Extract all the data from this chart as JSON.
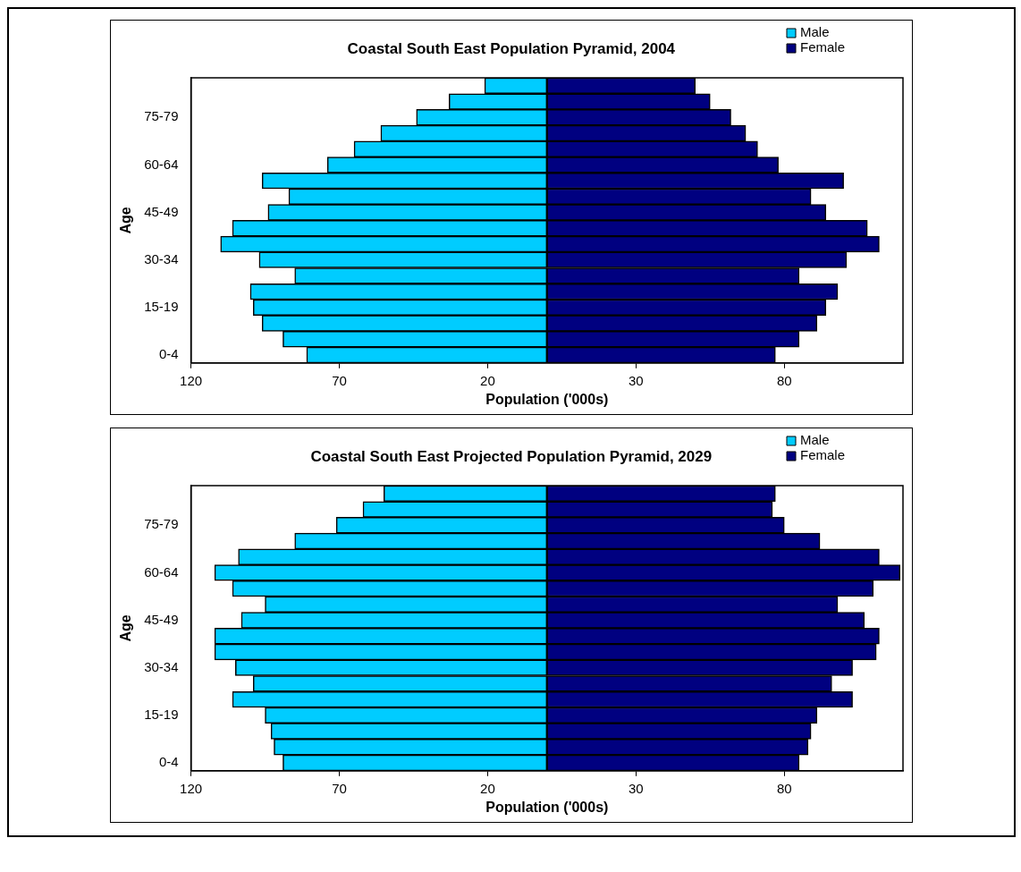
{
  "chart_data": [
    {
      "type": "bar",
      "orientation": "horizontal",
      "stacked": true,
      "title": "Coastal South East Population Pyramid, 2004",
      "xlabel": "Population ('000s)",
      "ylabel": "Age",
      "legend": "top right",
      "grid": false,
      "categories": [
        null,
        null,
        "75-79",
        null,
        null,
        "60-64",
        null,
        null,
        "45-49",
        null,
        null,
        "30-34",
        null,
        null,
        "15-19",
        null,
        null,
        "0-4"
      ],
      "xlim": [
        -120,
        120
      ],
      "xticks": [
        {
          "value": -120,
          "label": "120"
        },
        {
          "value": -70,
          "label": "70"
        },
        {
          "value": -20,
          "label": "20"
        },
        {
          "value": 30,
          "label": "30"
        },
        {
          "value": 80,
          "label": "80"
        }
      ],
      "series": [
        {
          "name": "Male",
          "color": "#00ccff",
          "values": [
            -21,
            -33,
            -44,
            -56,
            -65,
            -74,
            -96,
            -87,
            -94,
            -106,
            -110,
            -97,
            -85,
            -100,
            -99,
            -96,
            -89,
            -81
          ]
        },
        {
          "name": "Female",
          "color": "#000080",
          "values": [
            50,
            55,
            62,
            67,
            71,
            78,
            100,
            89,
            94,
            108,
            112,
            101,
            85,
            98,
            94,
            91,
            85,
            77
          ]
        }
      ]
    },
    {
      "type": "bar",
      "orientation": "horizontal",
      "stacked": true,
      "title": "Coastal South East Projected Population Pyramid, 2029",
      "xlabel": "Population ('000s)",
      "ylabel": "Age",
      "legend": "top right",
      "grid": false,
      "categories": [
        null,
        null,
        "75-79",
        null,
        null,
        "60-64",
        null,
        null,
        "45-49",
        null,
        null,
        "30-34",
        null,
        null,
        "15-19",
        null,
        null,
        "0-4"
      ],
      "xlim": [
        -120,
        120
      ],
      "xticks": [
        {
          "value": -120,
          "label": "120"
        },
        {
          "value": -70,
          "label": "70"
        },
        {
          "value": -20,
          "label": "20"
        },
        {
          "value": 30,
          "label": "30"
        },
        {
          "value": 80,
          "label": "80"
        }
      ],
      "series": [
        {
          "name": "Male",
          "color": "#00ccff",
          "values": [
            -55,
            -62,
            -71,
            -85,
            -104,
            -112,
            -106,
            -95,
            -103,
            -112,
            -112,
            -105,
            -99,
            -106,
            -95,
            -93,
            -92,
            -89
          ]
        },
        {
          "name": "Female",
          "color": "#000080",
          "values": [
            77,
            76,
            80,
            92,
            112,
            119,
            110,
            98,
            107,
            112,
            111,
            103,
            96,
            103,
            91,
            89,
            88,
            85
          ]
        }
      ]
    }
  ]
}
